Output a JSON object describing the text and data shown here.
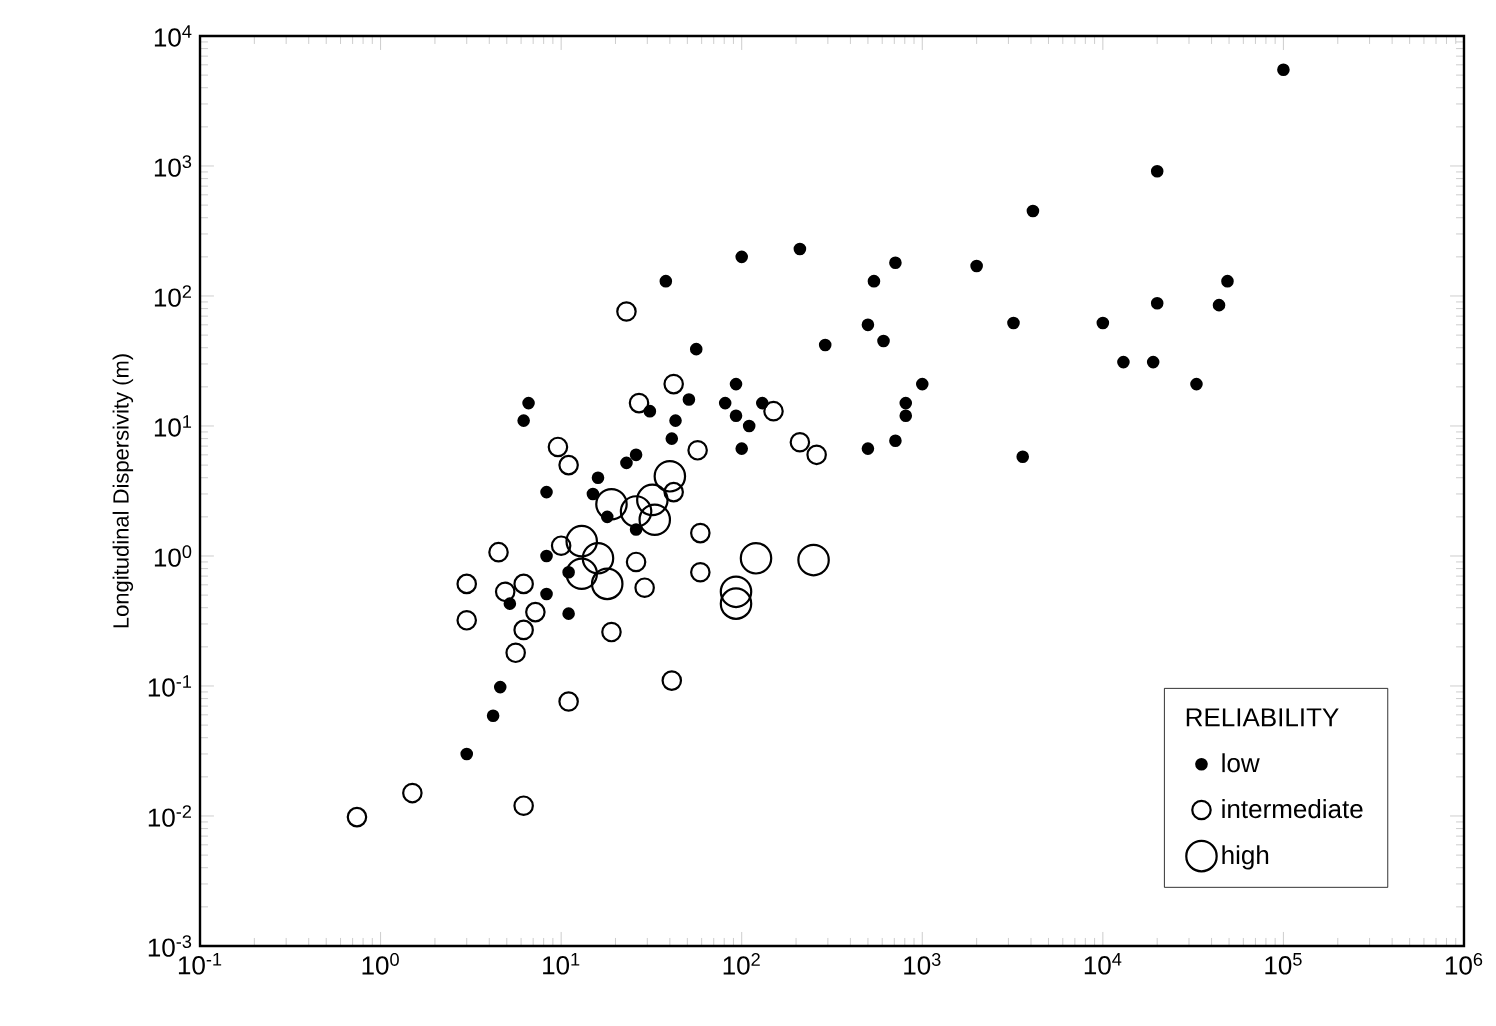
{
  "chart_data": {
    "type": "scatter",
    "ylabel": "Longitudinal Dispersivity (m)",
    "legend_title": "RELIABILITY",
    "legend": "bottom right",
    "log": "xy",
    "grid": false,
    "marker": "circle",
    "xlim": [
      0.1,
      1000000
    ],
    "ylim": [
      0.001,
      10000
    ],
    "xticks": [
      {
        "value": 0.1,
        "label": "10$^{-1}$"
      },
      {
        "value": 1,
        "label": "10$^{0}$"
      },
      {
        "value": 10,
        "label": "10$^{1}$"
      },
      {
        "value": 100,
        "label": "10$^{2}$"
      },
      {
        "value": 1000,
        "label": "10$^{3}$"
      },
      {
        "value": 10000,
        "label": "10$^{4}$"
      },
      {
        "value": 100000,
        "label": "10$^{5}$"
      },
      {
        "value": 1000000,
        "label": "10$^{6}$"
      }
    ],
    "yticks": [
      {
        "value": 0.001,
        "label": "10$^{-3}$"
      },
      {
        "value": 0.01,
        "label": "10$^{-2}$"
      },
      {
        "value": 0.1,
        "label": "10$^{-1}$"
      },
      {
        "value": 1,
        "label": "10$^{0}$"
      },
      {
        "value": 10,
        "label": "10$^{1}$"
      },
      {
        "value": 100,
        "label": "10$^{2}$"
      },
      {
        "value": 1000,
        "label": "10$^{3}$"
      },
      {
        "value": 10000,
        "label": "10$^{4}$"
      }
    ],
    "series": [
      {
        "name": "low",
        "color": "#000000",
        "x": [
          100000,
          20000,
          4100,
          710,
          540,
          2000,
          210,
          100,
          38,
          56,
          290,
          500,
          610,
          3200,
          10000,
          20000,
          44000,
          49000,
          13000,
          19000,
          33000,
          1000,
          810,
          810,
          500,
          710,
          3600,
          6.6,
          6.2,
          51,
          43,
          41,
          93,
          81,
          130,
          93,
          110,
          100,
          31,
          26,
          23,
          16,
          8.3,
          15,
          18,
          26,
          8.3,
          11,
          8.3,
          5.2,
          11,
          4.6,
          4.2,
          3.0
        ],
        "values": [
          5500,
          910,
          450,
          180,
          130,
          170,
          230,
          200,
          130,
          39,
          42,
          60,
          45,
          62,
          62,
          88,
          85,
          130,
          31,
          31,
          21,
          21,
          15,
          12,
          6.7,
          7.7,
          5.8,
          15,
          11,
          16,
          11,
          8.0,
          21,
          15,
          15,
          12,
          10,
          6.7,
          13,
          6.0,
          5.2,
          4.0,
          3.1,
          3.0,
          2.0,
          1.6,
          1.0,
          0.75,
          0.51,
          0.43,
          0.36,
          0.098,
          0.059,
          0.03
        ]
      },
      {
        "name": "intermediate",
        "color": "#000000",
        "x": [
          23,
          42,
          27,
          150,
          9.6,
          11,
          57,
          210,
          260,
          42,
          59,
          10,
          26,
          4.5,
          29,
          59,
          3.0,
          6.2,
          4.9,
          7.2,
          3.0,
          6.2,
          5.6,
          19,
          41,
          11,
          1.5,
          0.74,
          6.2
        ],
        "values": [
          76,
          21,
          15,
          13,
          6.9,
          5.0,
          6.5,
          7.5,
          6.0,
          3.1,
          1.5,
          1.2,
          0.9,
          1.07,
          0.57,
          0.75,
          0.61,
          0.61,
          0.53,
          0.37,
          0.32,
          0.27,
          0.18,
          0.26,
          0.11,
          0.076,
          0.015,
          0.0098,
          0.012
        ]
      },
      {
        "name": "high",
        "color": "#000000",
        "x": [
          40,
          32,
          19,
          26,
          33,
          13,
          16,
          13,
          18,
          120,
          250,
          93,
          93
        ],
        "values": [
          4.1,
          2.7,
          2.5,
          2.2,
          1.9,
          1.3,
          0.96,
          0.73,
          0.61,
          0.96,
          0.93,
          0.53,
          0.43
        ]
      }
    ]
  }
}
